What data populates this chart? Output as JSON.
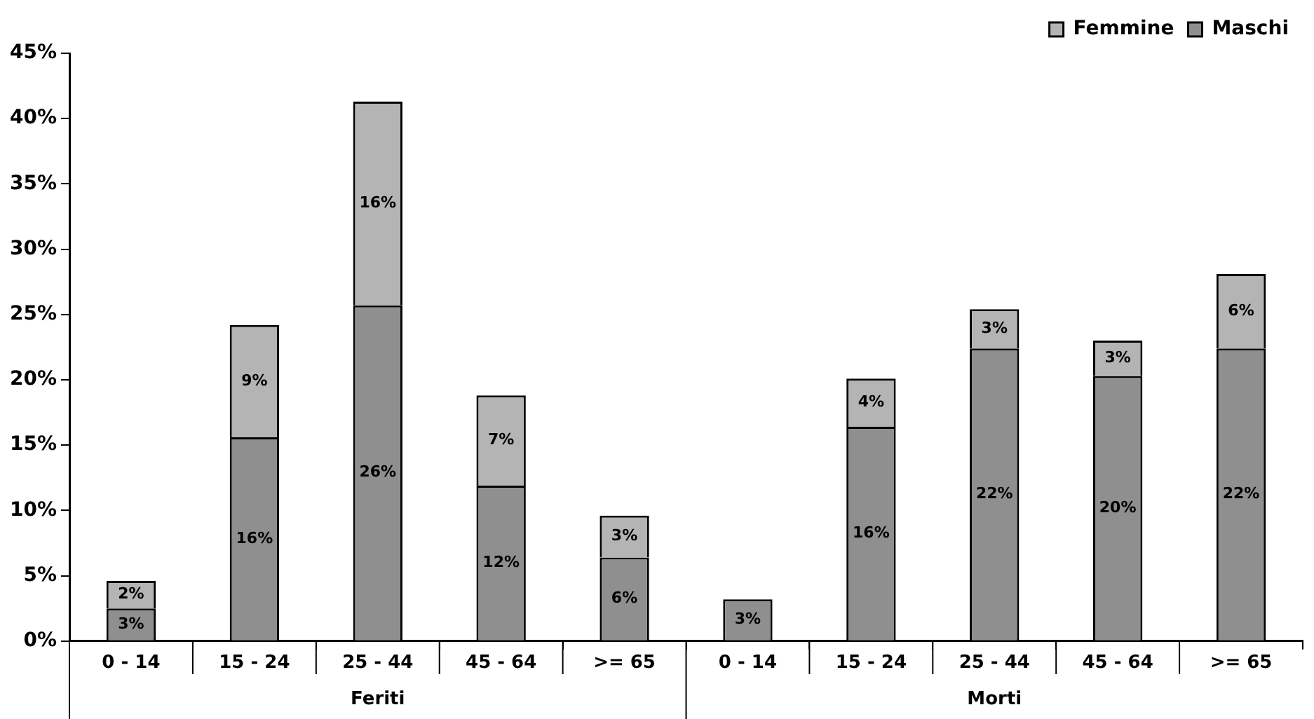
{
  "chart_data": {
    "type": "bar",
    "stacked": true,
    "categories": [
      "0 - 14",
      "15 - 24",
      "25 - 44",
      "45 - 64",
      ">= 65",
      "0 - 14",
      "15 - 24",
      "25 - 44",
      "45 - 64",
      ">= 65"
    ],
    "annotations": [
      "Feriti",
      "Morti"
    ],
    "series": [
      {
        "name": "Maschi",
        "color": "#8f8f8f",
        "values": [
          2.5,
          15.6,
          25.7,
          11.9,
          6.4,
          3.2,
          16.4,
          22.4,
          20.3,
          22.4
        ],
        "value_labels": [
          "3%",
          "16%",
          "26%",
          "12%",
          "6%",
          "3%",
          "16%",
          "22%",
          "20%",
          "22%"
        ]
      },
      {
        "name": "Femmine",
        "color": "#b4b4b4",
        "values": [
          2.1,
          8.6,
          15.6,
          6.9,
          3.2,
          null,
          3.7,
          3.0,
          2.7,
          5.7
        ],
        "value_labels": [
          "2%",
          "9%",
          "16%",
          "7%",
          "3%",
          null,
          "4%",
          "3%",
          "3%",
          "6%"
        ]
      }
    ],
    "ylim": [
      0,
      45
    ],
    "yticks": [
      {
        "value": 0,
        "label": "0%"
      },
      {
        "value": 5,
        "label": "5%"
      },
      {
        "value": 10,
        "label": "10%"
      },
      {
        "value": 15,
        "label": "15%"
      },
      {
        "value": 20,
        "label": "20%"
      },
      {
        "value": 25,
        "label": "25%"
      },
      {
        "value": 30,
        "label": "30%"
      },
      {
        "value": 35,
        "label": "35%"
      },
      {
        "value": 40,
        "label": "40%"
      },
      {
        "value": 45,
        "label": "45%"
      }
    ],
    "grid": false,
    "legend": "top right"
  }
}
